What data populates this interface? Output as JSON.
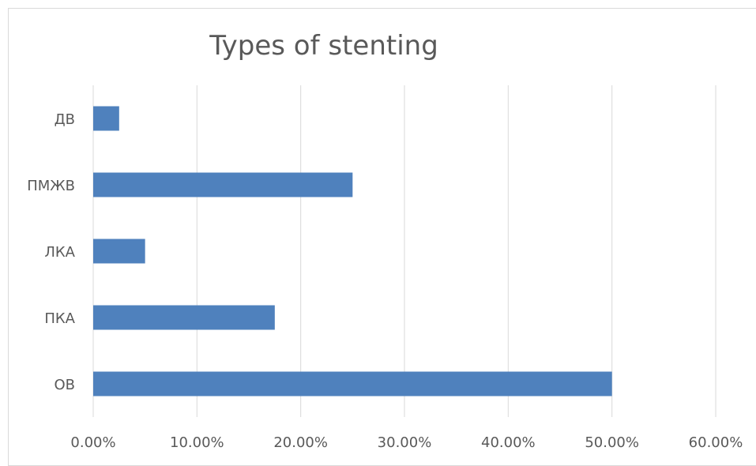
{
  "chart_data": {
    "type": "bar",
    "orientation": "horizontal",
    "title": "Types of stenting",
    "categories": [
      "ДВ",
      "ПМЖВ",
      "ЛКА",
      "ПКА",
      "ОВ"
    ],
    "values": [
      0.025,
      0.25,
      0.05,
      0.175,
      0.5
    ],
    "xlim": [
      0,
      0.6
    ],
    "x_ticks": [
      0,
      0.1,
      0.2,
      0.3,
      0.4,
      0.5,
      0.6
    ],
    "x_tick_labels": [
      "0.00%",
      "10.00%",
      "20.00%",
      "30.00%",
      "40.00%",
      "50.00%",
      "60.00%"
    ],
    "grid": true,
    "legend": "none",
    "colors": {
      "bar": "#4f81bd",
      "grid": "#d9d9d9",
      "text": "#595959"
    }
  }
}
